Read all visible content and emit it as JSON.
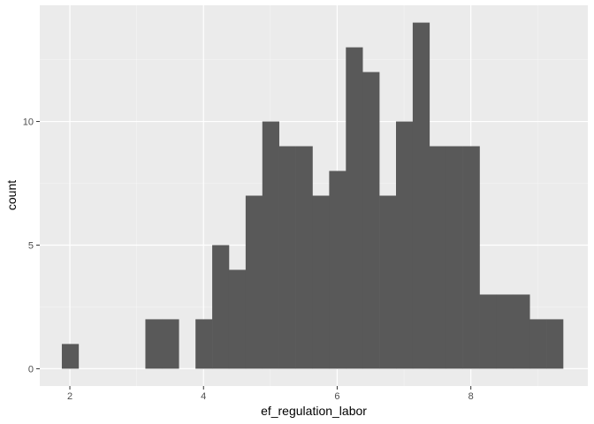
{
  "chart_data": {
    "type": "bar",
    "subtype": "histogram",
    "xlabel": "ef_regulation_labor",
    "ylabel": "count",
    "xlim": [
      1.55,
      9.75
    ],
    "ylim": [
      -0.7,
      14.7
    ],
    "x_ticks": [
      2,
      4,
      6,
      8
    ],
    "x_tick_labels": [
      "2",
      "4",
      "6",
      "8"
    ],
    "y_ticks": [
      0,
      5,
      10
    ],
    "y_tick_labels": [
      "0",
      "5",
      "10"
    ],
    "grid": true,
    "bin_width": 0.25,
    "bins": [
      {
        "start": 1.88,
        "count": 1
      },
      {
        "start": 2.13,
        "count": 0
      },
      {
        "start": 2.38,
        "count": 0
      },
      {
        "start": 2.63,
        "count": 0
      },
      {
        "start": 2.88,
        "count": 0
      },
      {
        "start": 3.13,
        "count": 2
      },
      {
        "start": 3.38,
        "count": 2
      },
      {
        "start": 3.63,
        "count": 0
      },
      {
        "start": 3.88,
        "count": 2
      },
      {
        "start": 4.13,
        "count": 5
      },
      {
        "start": 4.38,
        "count": 4
      },
      {
        "start": 4.63,
        "count": 7
      },
      {
        "start": 4.88,
        "count": 10
      },
      {
        "start": 5.13,
        "count": 9
      },
      {
        "start": 5.38,
        "count": 9
      },
      {
        "start": 5.63,
        "count": 7
      },
      {
        "start": 5.88,
        "count": 8
      },
      {
        "start": 6.13,
        "count": 13
      },
      {
        "start": 6.38,
        "count": 12
      },
      {
        "start": 6.63,
        "count": 7
      },
      {
        "start": 6.88,
        "count": 10
      },
      {
        "start": 7.13,
        "count": 14
      },
      {
        "start": 7.38,
        "count": 9
      },
      {
        "start": 7.63,
        "count": 9
      },
      {
        "start": 7.88,
        "count": 9
      },
      {
        "start": 8.13,
        "count": 3
      },
      {
        "start": 8.38,
        "count": 3
      },
      {
        "start": 8.63,
        "count": 3
      },
      {
        "start": 8.88,
        "count": 2
      },
      {
        "start": 9.13,
        "count": 2
      }
    ],
    "colors": {
      "panel": "#ebebeb",
      "grid_major": "#ffffff",
      "grid_minor": "#f5f5f5",
      "bar_fill": "#595959",
      "tick": "#333333"
    }
  }
}
